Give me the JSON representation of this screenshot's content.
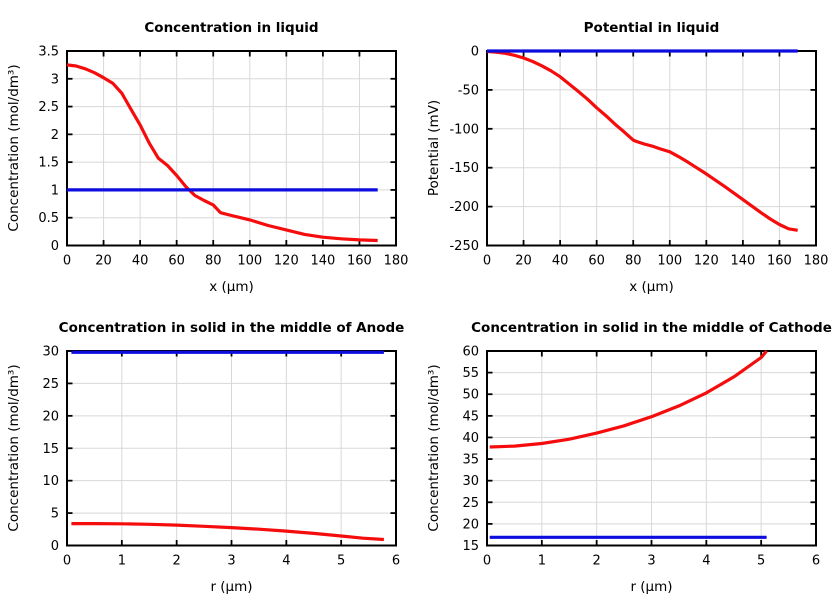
{
  "colors": {
    "red": "#f50d0d",
    "blue": "#0d0de0",
    "grid": "#d8d8d8",
    "axis": "#000000",
    "background": "#ffffff"
  },
  "chart_data": [
    {
      "type": "line",
      "title": "Concentration in liquid",
      "xlabel": "x (µm)",
      "ylabel": "Concentration (mol/dm³)",
      "xlim": [
        0,
        180
      ],
      "ylim": [
        0,
        3.5
      ],
      "xticks": [
        0,
        20,
        40,
        60,
        80,
        100,
        120,
        140,
        160,
        180
      ],
      "yticks": [
        0,
        0.5,
        1,
        1.5,
        2,
        2.5,
        3,
        3.5
      ],
      "grid": true,
      "legend": "none",
      "series": [
        {
          "name": "liquid-concentration-profile",
          "color": "red",
          "x": [
            0,
            5,
            10,
            15,
            20,
            25,
            30,
            35,
            40,
            45,
            50,
            55,
            60,
            65,
            70,
            75,
            80,
            84,
            90,
            95,
            100,
            110,
            120,
            130,
            140,
            150,
            160,
            170
          ],
          "y": [
            3.25,
            3.23,
            3.18,
            3.11,
            3.02,
            2.92,
            2.74,
            2.45,
            2.17,
            1.84,
            1.57,
            1.44,
            1.26,
            1.06,
            0.9,
            0.81,
            0.73,
            0.59,
            0.54,
            0.5,
            0.46,
            0.36,
            0.28,
            0.2,
            0.15,
            0.12,
            0.1,
            0.09
          ]
        },
        {
          "name": "initial-concentration-reference",
          "color": "blue",
          "x": [
            0,
            170
          ],
          "y": [
            1,
            1
          ]
        }
      ]
    },
    {
      "type": "line",
      "title": "Potential in liquid",
      "xlabel": "x (µm)",
      "ylabel": "Potential (mV)",
      "xlim": [
        0,
        180
      ],
      "ylim": [
        -250,
        0
      ],
      "xticks": [
        0,
        20,
        40,
        60,
        80,
        100,
        120,
        140,
        160,
        180
      ],
      "yticks": [
        -250,
        -200,
        -150,
        -100,
        -50,
        0
      ],
      "grid": true,
      "legend": "none",
      "series": [
        {
          "name": "liquid-potential-profile",
          "color": "red",
          "x": [
            0,
            5,
            10,
            15,
            20,
            25,
            30,
            35,
            40,
            45,
            50,
            55,
            60,
            65,
            70,
            75,
            80,
            82,
            86,
            90,
            95,
            100,
            105,
            110,
            120,
            130,
            140,
            150,
            155,
            160,
            165,
            170
          ],
          "y": [
            -0.5,
            -1.5,
            -3,
            -5.5,
            -9,
            -13.5,
            -19,
            -25.5,
            -33,
            -42.5,
            -52,
            -62,
            -73,
            -83,
            -94,
            -104,
            -114.5,
            -116.5,
            -119.5,
            -122,
            -126,
            -129.5,
            -136,
            -143,
            -158,
            -174,
            -191,
            -208,
            -216,
            -223,
            -228.5,
            -230.5
          ]
        },
        {
          "name": "initial-potential-reference",
          "color": "blue",
          "x": [
            0,
            170
          ],
          "y": [
            0,
            0
          ]
        }
      ]
    },
    {
      "type": "line",
      "title": "Concentration in solid in the middle of Anode",
      "xlabel": "r (µm)",
      "ylabel": "Concentration (mol/dm³)",
      "xlim": [
        0,
        6
      ],
      "ylim": [
        0,
        30
      ],
      "xticks": [
        0,
        1,
        2,
        3,
        4,
        5,
        6
      ],
      "yticks": [
        0,
        5,
        10,
        15,
        20,
        25,
        30
      ],
      "grid": true,
      "legend": "none",
      "series": [
        {
          "name": "anode-initial-concentration-reference",
          "color": "blue",
          "x": [
            0.08,
            5.78
          ],
          "y": [
            29.8,
            29.8
          ]
        },
        {
          "name": "anode-solid-concentration-profile",
          "color": "red",
          "x": [
            0.08,
            0.5,
            1,
            1.5,
            2,
            2.5,
            3,
            3.5,
            4,
            4.5,
            5,
            5.4,
            5.78
          ],
          "y": [
            3.38,
            3.38,
            3.35,
            3.27,
            3.14,
            2.96,
            2.76,
            2.52,
            2.22,
            1.86,
            1.46,
            1.12,
            0.92
          ]
        }
      ]
    },
    {
      "type": "line",
      "title": "Concentration in solid in the middle of Cathode",
      "xlabel": "r (µm)",
      "ylabel": "Concentration (mol/dm³)",
      "xlim": [
        0,
        6
      ],
      "ylim": [
        15,
        60
      ],
      "xticks": [
        0,
        1,
        2,
        3,
        4,
        5,
        6
      ],
      "yticks": [
        15,
        20,
        25,
        30,
        35,
        40,
        45,
        50,
        55,
        60
      ],
      "grid": true,
      "legend": "none",
      "series": [
        {
          "name": "cathode-solid-concentration-profile",
          "color": "red",
          "x": [
            0.05,
            0.5,
            1,
            1.5,
            2,
            2.5,
            3,
            3.5,
            4,
            4.5,
            5,
            5.1
          ],
          "y": [
            37.8,
            38.0,
            38.6,
            39.6,
            41.0,
            42.7,
            44.8,
            47.3,
            50.3,
            54.0,
            58.5,
            60.0
          ]
        },
        {
          "name": "cathode-initial-concentration-reference",
          "color": "blue",
          "x": [
            0.05,
            5.1
          ],
          "y": [
            16.9,
            16.9
          ]
        }
      ]
    }
  ]
}
